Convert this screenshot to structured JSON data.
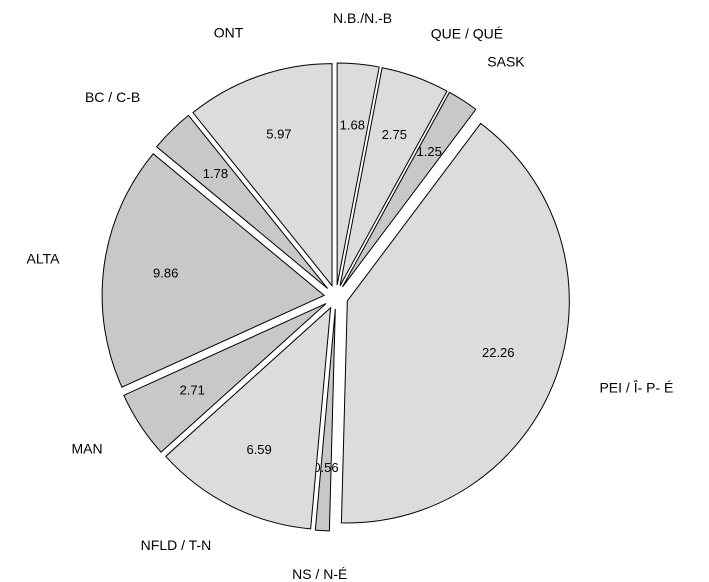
{
  "chart_data": {
    "type": "pie",
    "categories": [
      "N.B./N.-B",
      "QUE / QUÉ",
      "SASK",
      "PEI / Î- P- É",
      "NS / N-É",
      "NFLD / T-N",
      "MAN",
      "ALTA",
      "BC / C-B",
      "ONT"
    ],
    "values": [
      1.68,
      2.75,
      1.25,
      22.26,
      0.56,
      6.59,
      2.71,
      9.86,
      1.78,
      5.97
    ],
    "colors": [
      "#dcdcdc",
      "#dcdcdc",
      "#c8c8c8",
      "#dcdcdc",
      "#c8c8c8",
      "#dcdcdc",
      "#c8c8c8",
      "#c8c8c8",
      "#c8c8c8",
      "#dcdcdc"
    ]
  }
}
